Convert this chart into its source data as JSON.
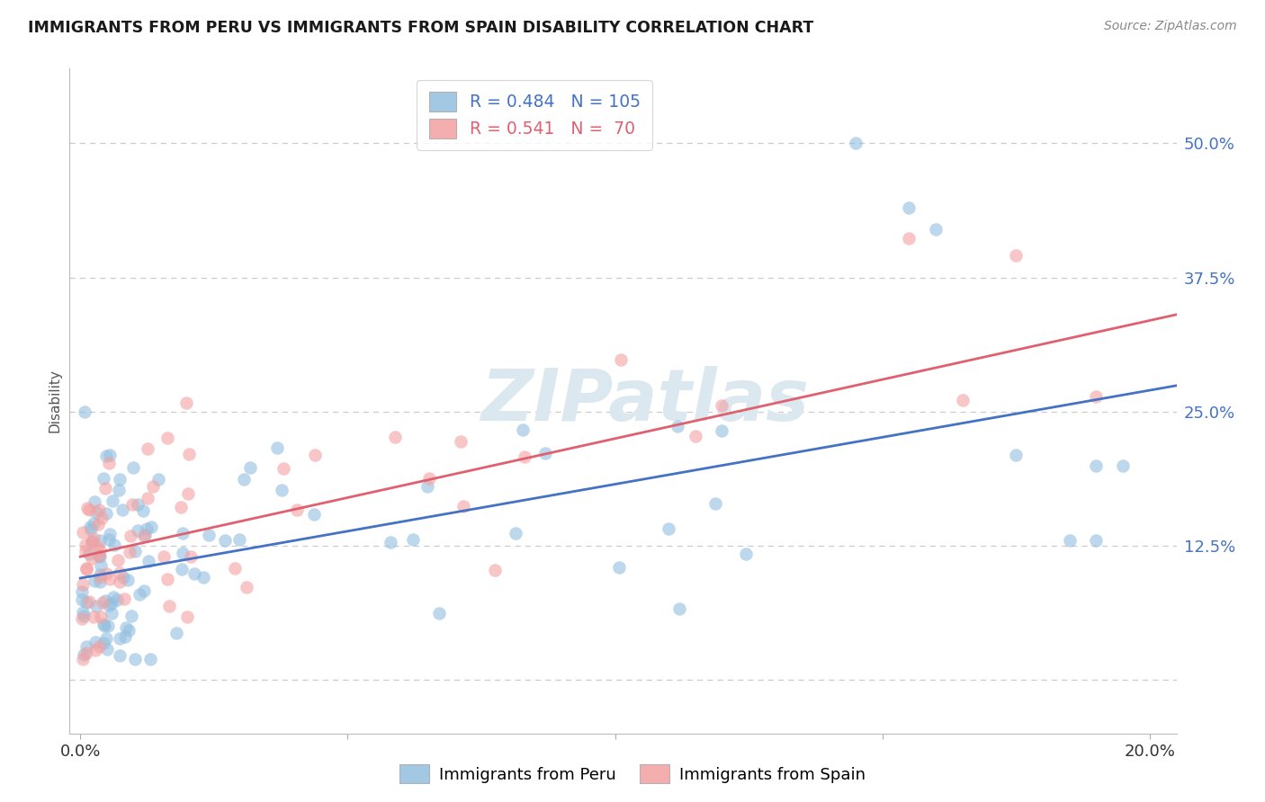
{
  "title": "IMMIGRANTS FROM PERU VS IMMIGRANTS FROM SPAIN DISABILITY CORRELATION CHART",
  "source": "Source: ZipAtlas.com",
  "ylabel": "Disability",
  "xlim": [
    -0.002,
    0.205
  ],
  "ylim": [
    -0.05,
    0.57
  ],
  "yticks": [
    0.0,
    0.125,
    0.25,
    0.375,
    0.5
  ],
  "ytick_labels": [
    "",
    "12.5%",
    "25.0%",
    "37.5%",
    "50.0%"
  ],
  "xticks": [
    0.0,
    0.05,
    0.1,
    0.15,
    0.2
  ],
  "xtick_labels": [
    "0.0%",
    "",
    "",
    "",
    "20.0%"
  ],
  "legend_peru_R": "0.484",
  "legend_peru_N": "105",
  "legend_spain_R": "0.541",
  "legend_spain_N": " 70",
  "peru_color": "#92bfe0",
  "spain_color": "#f4a0a0",
  "peru_line_color": "#4472c4",
  "spain_line_color": "#e06070",
  "watermark_color": "#dce8f0",
  "background_color": "#ffffff",
  "grid_color": "#cccccc",
  "title_color": "#1a1a1a",
  "source_color": "#888888",
  "ylabel_color": "#555555",
  "ytick_color": "#4472c4",
  "xtick_color": "#333333"
}
